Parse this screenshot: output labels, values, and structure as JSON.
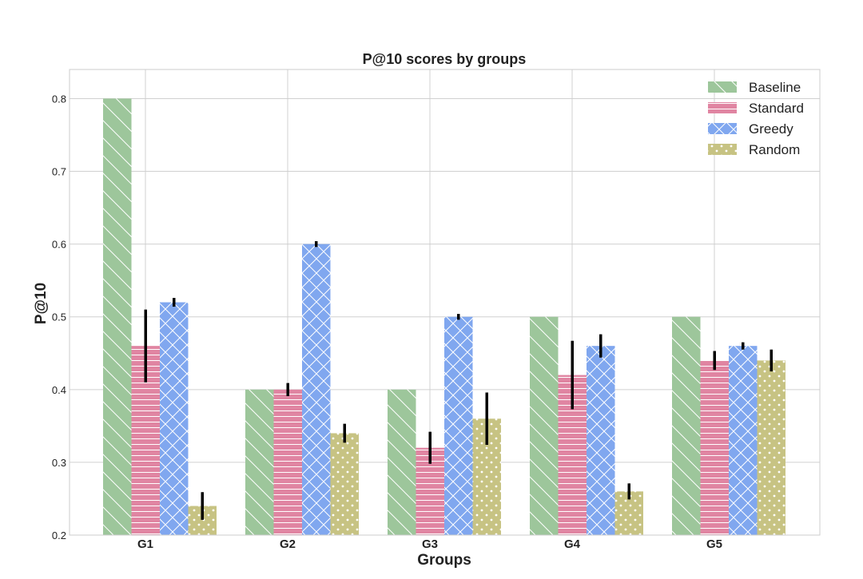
{
  "chart_data": {
    "type": "bar",
    "title": "P@10 scores by groups",
    "xlabel": "Groups",
    "ylabel": "P@10",
    "categories": [
      "G1",
      "G2",
      "G3",
      "G4",
      "G5"
    ],
    "ylim": [
      0.2,
      0.84
    ],
    "yticks": [
      "0.2",
      "0.3",
      "0.4",
      "0.5",
      "0.6",
      "0.7",
      "0.8"
    ],
    "grid": true,
    "legend_position": "top-right",
    "series": [
      {
        "name": "Baseline",
        "color": "#9dc69b",
        "pattern": "diagonal-lines",
        "values": [
          0.8,
          0.4,
          0.4,
          0.5,
          0.5
        ],
        "errors": [
          0,
          0,
          0,
          0,
          0
        ]
      },
      {
        "name": "Standard",
        "color": "#e085a2",
        "pattern": "horizontal-lines",
        "values": [
          0.46,
          0.4,
          0.32,
          0.42,
          0.44
        ],
        "errors": [
          0.05,
          0.009,
          0.022,
          0.047,
          0.013
        ]
      },
      {
        "name": "Greedy",
        "color": "#80a7ef",
        "pattern": "crosshatch",
        "values": [
          0.52,
          0.6,
          0.5,
          0.46,
          0.46
        ],
        "errors": [
          0.006,
          0.004,
          0.004,
          0.016,
          0.005
        ]
      },
      {
        "name": "Random",
        "color": "#c7c383",
        "pattern": "dots",
        "values": [
          0.24,
          0.34,
          0.36,
          0.26,
          0.44
        ],
        "errors": [
          0.019,
          0.013,
          0.036,
          0.011,
          0.015
        ]
      }
    ]
  }
}
